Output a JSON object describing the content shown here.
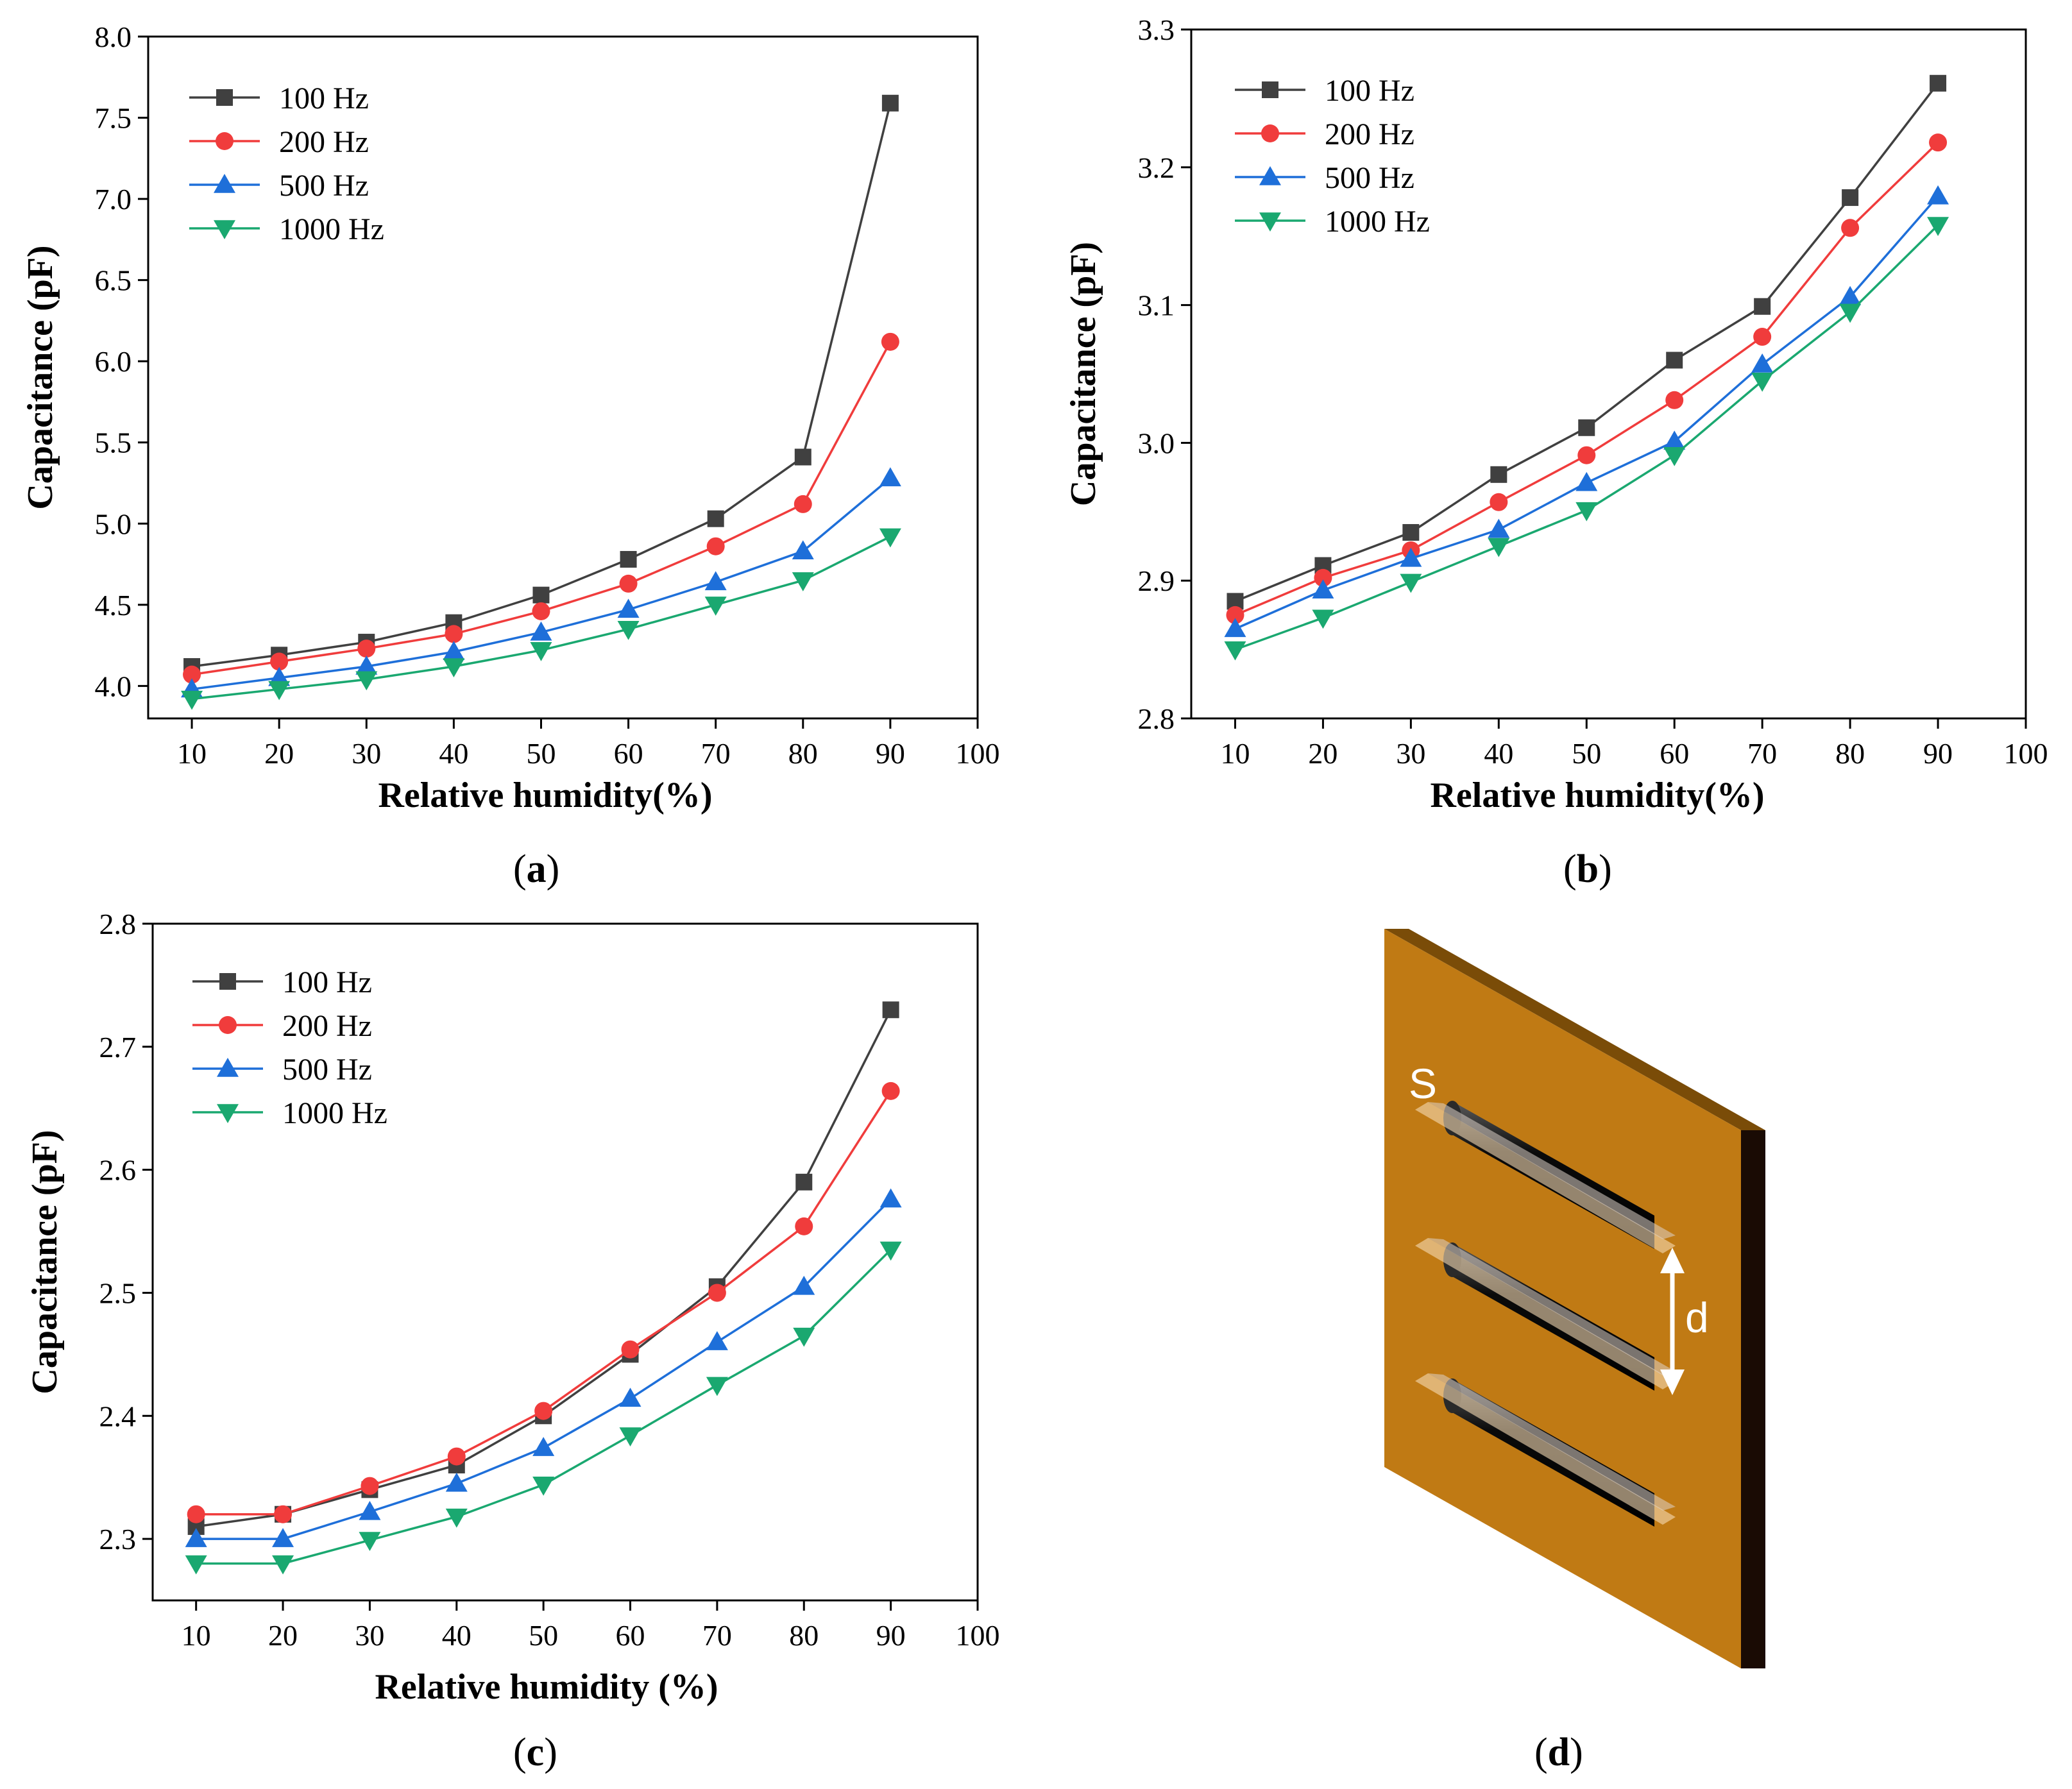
{
  "chart_data": [
    {
      "id": "a",
      "type": "line",
      "panel_label": "a",
      "xlabel": "Relative humidity(%)",
      "ylabel": "Capacitance (pF)",
      "xlim": [
        5,
        100
      ],
      "ylim": [
        3.8,
        8.0
      ],
      "xticks": [
        10,
        20,
        30,
        40,
        50,
        60,
        70,
        80,
        90,
        100
      ],
      "yticks": [
        4.0,
        4.5,
        5.0,
        5.5,
        6.0,
        6.5,
        7.0,
        7.5,
        8.0
      ],
      "ytick_labels": [
        "4.0",
        "4.5",
        "5.0",
        "5.5",
        "6.0",
        "6.5",
        "7.0",
        "7.5",
        "8.0"
      ],
      "grid": false,
      "legend_position": "top-left",
      "x": [
        10,
        20,
        30,
        40,
        50,
        60,
        70,
        80,
        90
      ],
      "series": [
        {
          "name": "100 Hz",
          "color": "#404040",
          "marker": "square",
          "values": [
            4.12,
            4.19,
            4.27,
            4.39,
            4.56,
            4.78,
            5.03,
            5.41,
            7.59
          ]
        },
        {
          "name": "200 Hz",
          "color": "#f03c3c",
          "marker": "circle",
          "values": [
            4.07,
            4.15,
            4.23,
            4.32,
            4.46,
            4.63,
            4.86,
            5.12,
            6.12
          ]
        },
        {
          "name": "500 Hz",
          "color": "#1e6fd9",
          "marker": "triangle-up",
          "values": [
            3.98,
            4.05,
            4.12,
            4.21,
            4.33,
            4.47,
            4.64,
            4.83,
            5.28
          ]
        },
        {
          "name": "1000 Hz",
          "color": "#1aa870",
          "marker": "triangle-down",
          "values": [
            3.92,
            3.98,
            4.04,
            4.12,
            4.22,
            4.35,
            4.5,
            4.65,
            4.92
          ]
        }
      ]
    },
    {
      "id": "b",
      "type": "line",
      "panel_label": "b",
      "xlabel": "Relative humidity(%)",
      "ylabel": "Capacitance (pF)",
      "xlim": [
        5,
        100
      ],
      "ylim": [
        2.8,
        3.3
      ],
      "xticks": [
        10,
        20,
        30,
        40,
        50,
        60,
        70,
        80,
        90,
        100
      ],
      "yticks": [
        2.8,
        2.9,
        3.0,
        3.1,
        3.2,
        3.3
      ],
      "ytick_labels": [
        "2.8",
        "2.9",
        "3.0",
        "3.1",
        "3.2",
        "3.3"
      ],
      "grid": false,
      "legend_position": "top-left",
      "x": [
        10,
        20,
        30,
        40,
        50,
        60,
        70,
        80,
        90
      ],
      "series": [
        {
          "name": "100 Hz",
          "color": "#404040",
          "marker": "square",
          "values": [
            2.885,
            2.911,
            2.935,
            2.977,
            3.011,
            3.06,
            3.099,
            3.178,
            3.261
          ]
        },
        {
          "name": "200 Hz",
          "color": "#f03c3c",
          "marker": "circle",
          "values": [
            2.875,
            2.902,
            2.922,
            2.957,
            2.991,
            3.031,
            3.077,
            3.156,
            3.218
          ]
        },
        {
          "name": "500 Hz",
          "color": "#1e6fd9",
          "marker": "triangle-up",
          "values": [
            2.865,
            2.893,
            2.916,
            2.937,
            2.971,
            3.001,
            3.057,
            3.106,
            3.179
          ]
        },
        {
          "name": "1000 Hz",
          "color": "#1aa870",
          "marker": "triangle-down",
          "values": [
            2.85,
            2.873,
            2.899,
            2.925,
            2.951,
            2.991,
            3.045,
            3.095,
            3.158
          ]
        }
      ]
    },
    {
      "id": "c",
      "type": "line",
      "panel_label": "c",
      "xlabel": "Relative humidity (%)",
      "ylabel": "Capacitance (pF)",
      "xlim": [
        5,
        100
      ],
      "ylim": [
        2.25,
        2.8
      ],
      "xticks": [
        10,
        20,
        30,
        40,
        50,
        60,
        70,
        80,
        90,
        100
      ],
      "yticks": [
        2.3,
        2.4,
        2.5,
        2.6,
        2.7,
        2.8
      ],
      "ytick_labels": [
        "2.3",
        "2.4",
        "2.5",
        "2.6",
        "2.7",
        "2.8"
      ],
      "grid": false,
      "legend_position": "top-left",
      "x": [
        10,
        20,
        30,
        40,
        50,
        60,
        70,
        80,
        90
      ],
      "series": [
        {
          "name": "100 Hz",
          "color": "#404040",
          "marker": "square",
          "values": [
            2.31,
            2.32,
            2.34,
            2.36,
            2.4,
            2.45,
            2.505,
            2.59,
            2.73
          ]
        },
        {
          "name": "200 Hz",
          "color": "#f03c3c",
          "marker": "circle",
          "values": [
            2.32,
            2.32,
            2.343,
            2.367,
            2.404,
            2.454,
            2.5,
            2.554,
            2.664
          ]
        },
        {
          "name": "500 Hz",
          "color": "#1e6fd9",
          "marker": "triangle-up",
          "values": [
            2.3,
            2.3,
            2.322,
            2.345,
            2.374,
            2.414,
            2.46,
            2.505,
            2.576
          ]
        },
        {
          "name": "1000 Hz",
          "color": "#1aa870",
          "marker": "triangle-down",
          "values": [
            2.28,
            2.28,
            2.299,
            2.318,
            2.344,
            2.384,
            2.425,
            2.465,
            2.535
          ]
        }
      ]
    }
  ],
  "diagram": {
    "panel_label": "d",
    "label_s": "S",
    "label_d": "d",
    "board_color": "#c07a14",
    "board_top_color": "#7a4c08",
    "board_side_color": "#1a0b04"
  },
  "panel_labels": [
    "(a)",
    "(b)",
    "(c)",
    "(d)"
  ]
}
